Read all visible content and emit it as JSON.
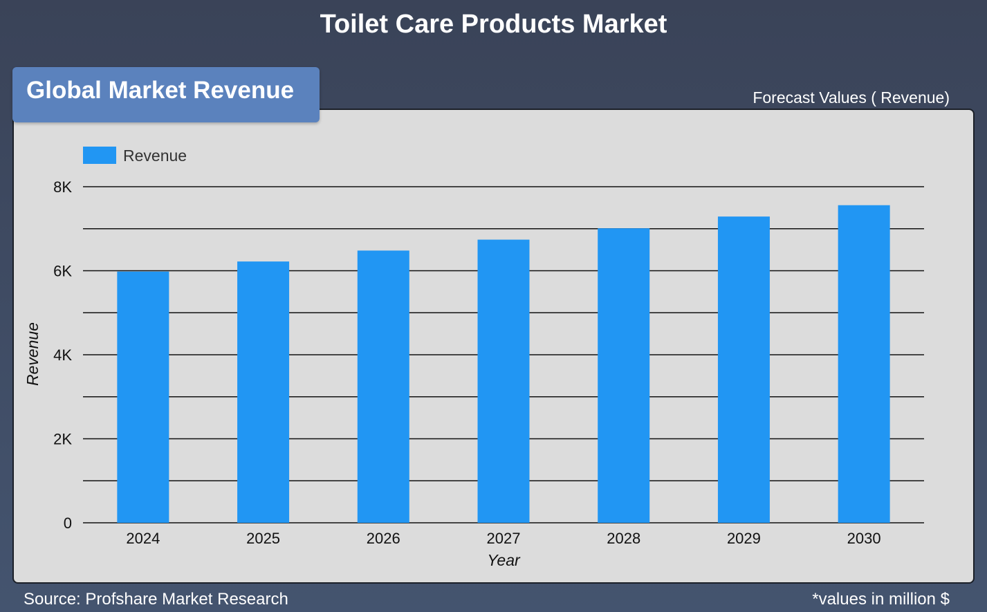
{
  "header": {
    "title": "Toilet Care Products Market"
  },
  "panel": {
    "badge_label": "Global Market Revenue",
    "forecast_label": "Forecast Values ( Revenue)"
  },
  "footer": {
    "source": "Source: Profshare Market Research",
    "note": "*values in million $"
  },
  "colors": {
    "bar": "#2196f3",
    "panel_background": "#dcdcdc",
    "badge": "#5b82bd",
    "page_background": "#3d475d"
  },
  "chart_data": {
    "type": "bar",
    "title": "",
    "categories": [
      "2024",
      "2025",
      "2026",
      "2027",
      "2028",
      "2029",
      "2030"
    ],
    "series": [
      {
        "name": "Revenue",
        "values": [
          5980,
          6220,
          6480,
          6740,
          7010,
          7290,
          7560
        ]
      }
    ],
    "xlabel": "Year",
    "ylabel": "Revenue",
    "ylim": [
      0,
      8000
    ],
    "yticks": [
      0,
      2000,
      4000,
      6000,
      8000
    ],
    "ytick_labels": [
      "0",
      "2K",
      "4K",
      "6K",
      "8K"
    ],
    "grid": true,
    "legend": "top-left"
  }
}
